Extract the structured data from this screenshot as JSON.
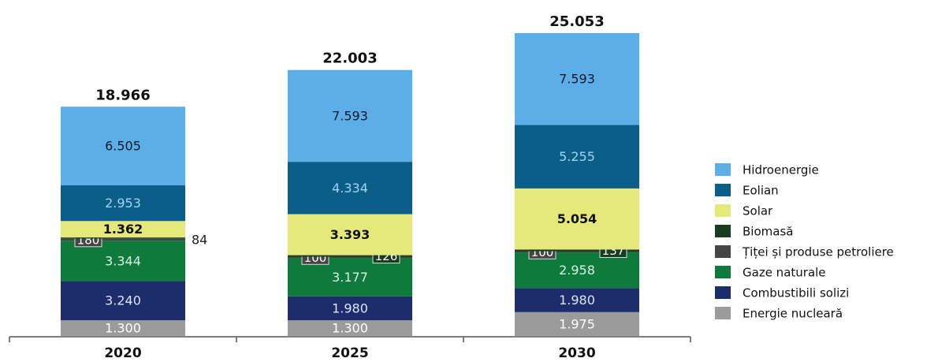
{
  "chart_data": {
    "type": "stacked-bar",
    "categories": [
      "2020",
      "2025",
      "2030"
    ],
    "totals": {
      "values": [
        18966,
        22003,
        25053
      ],
      "value_labels": [
        "18.966",
        "22.003",
        "25.053"
      ]
    },
    "series": [
      {
        "name": "Energie nucleară",
        "color": "#9b9b9b",
        "label_color": "#ffffff",
        "values": [
          1300,
          1300,
          1975
        ],
        "value_labels": [
          "1.300",
          "1.300",
          "1.975"
        ]
      },
      {
        "name": "Combustibili solizi",
        "color": "#1d2d6b",
        "label_color": "#d8e4ff",
        "values": [
          3240,
          1980,
          1980
        ],
        "value_labels": [
          "3.240",
          "1.980",
          "1.980"
        ]
      },
      {
        "name": "Gaze naturale",
        "color": "#0f7a3c",
        "label_color": "#d6f5e0",
        "values": [
          3344,
          3177,
          2958
        ],
        "value_labels": [
          "3.344",
          "3.177",
          "2.958"
        ]
      },
      {
        "name": "Țiței și produse petroliere",
        "color": "#454545",
        "label_color": "#ffffff",
        "values": [
          180,
          100,
          100
        ]
      },
      {
        "name": "Biomasă",
        "color": "#173d20",
        "label_color": "#ffffff",
        "values": [
          84,
          126,
          137
        ]
      },
      {
        "name": "Solar",
        "color": "#e5e97c",
        "label_color": "#111111",
        "values": [
          1362,
          3393,
          5054
        ],
        "value_labels": [
          "1.362",
          "3.393",
          "5.054"
        ]
      },
      {
        "name": "Eolian",
        "color": "#0b5e88",
        "label_color": "#9fd4f5",
        "values": [
          2953,
          4334,
          5255
        ],
        "value_labels": [
          "2.953",
          "4.334",
          "5.255"
        ]
      },
      {
        "name": "Hidroenergie",
        "color": "#5caee8",
        "label_color": "#0d1a2a",
        "values": [
          6505,
          7593,
          7593
        ],
        "value_labels": [
          "6.505",
          "7.593",
          "7.593"
        ]
      }
    ]
  }
}
